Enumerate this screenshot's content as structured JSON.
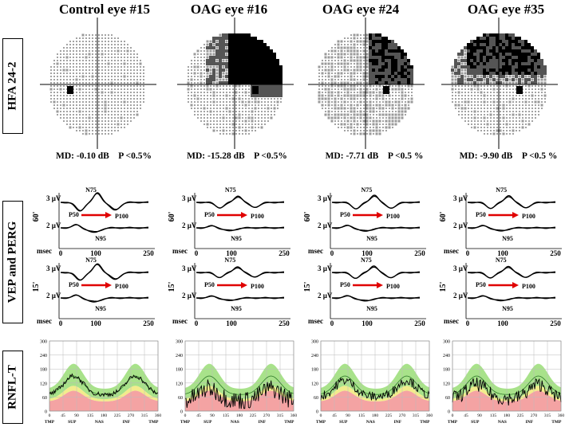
{
  "columns": [
    {
      "title": "Control eye #15",
      "md": "MD: -0.10 dB",
      "p": "P <0.5%",
      "severity": 0
    },
    {
      "title": "OAG eye #16",
      "md": "MD: -15.28 dB",
      "p": "P <0.5%",
      "severity": 3
    },
    {
      "title": "OAG eye #24",
      "md": "MD: -7.71 dB",
      "p": "P <0.5 %",
      "severity": 1
    },
    {
      "title": "OAG eye #35",
      "md": "MD: -9.90 dB",
      "p": "P <0.5 %",
      "severity": 2
    }
  ],
  "rows": {
    "hfa": "HFA 24-2",
    "vep": "VEP and PERG",
    "rnfl": "RNFL-T"
  },
  "waveform_labels": {
    "n75": "N75",
    "p50": "P50",
    "p100": "P100",
    "n95": "N95",
    "amp_top": "3 µV",
    "amp_bottom": "2 µV",
    "check_large": "60'",
    "check_small": "15'",
    "xaxis_unit": "msec",
    "xticks": [
      "0",
      "100",
      "250"
    ]
  },
  "rnfl_axis": {
    "yticks": [
      "0",
      "60",
      "120",
      "180",
      "240",
      "300"
    ],
    "xticks": [
      "0",
      "45",
      "90",
      "135",
      "180",
      "225",
      "270",
      "315",
      "360"
    ],
    "sectors": [
      "TMP",
      "SUP",
      "NAS",
      "INF",
      "TMP"
    ]
  },
  "colors": {
    "normal_band": "#a8e28a",
    "borderline_band": "#f2ec8c",
    "abnormal_band": "#f4a3a3",
    "arrow": "#e00000",
    "trace": "#000000"
  }
}
